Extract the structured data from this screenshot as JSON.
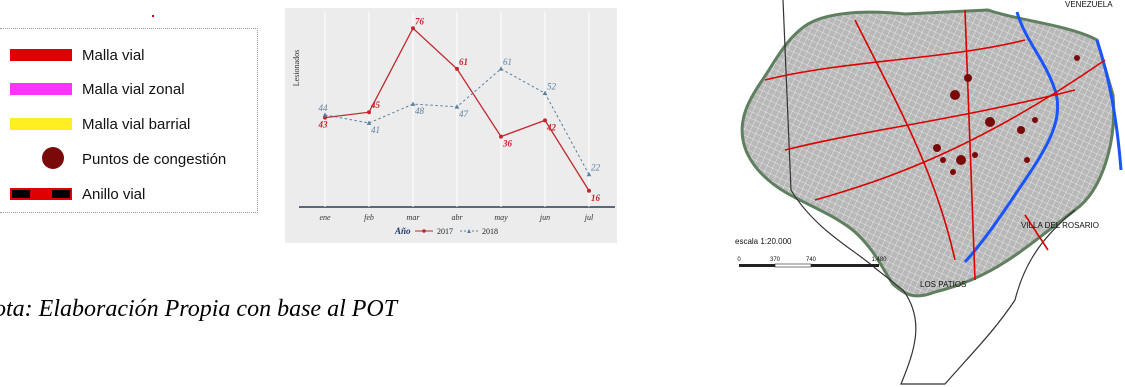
{
  "legend": {
    "items": [
      {
        "label": "Malla vial",
        "color": "#e00000"
      },
      {
        "label": "Malla vial zonal",
        "color": "#ff33ff"
      },
      {
        "label": "Malla vial barrial",
        "color": "#ffee22"
      },
      {
        "label": "Puntos de congestión",
        "color": "#7a0a0a"
      },
      {
        "label": "Anillo vial",
        "color": "#e00000"
      }
    ]
  },
  "chart_data": {
    "type": "line",
    "categories": [
      "ene",
      "feb",
      "mar",
      "abr",
      "may",
      "jun",
      "jul"
    ],
    "ylabel": "Lesionados",
    "legend_title": "Año",
    "series": [
      {
        "name": "2017",
        "values": [
          43,
          45,
          76,
          61,
          36,
          42,
          16
        ],
        "color": "#c0282e"
      },
      {
        "name": "2018",
        "values": [
          44,
          41,
          48,
          47,
          61,
          52,
          22
        ],
        "color": "#5a7fa0"
      }
    ],
    "ylim": [
      10,
      82
    ],
    "legend_position": "bottom"
  },
  "note": "ota: Elaboración Propia con base al POT",
  "map": {
    "labels": {
      "venezuela": "VENEZUELA",
      "villa": "VILLA DEL ROSARIO",
      "patios": "LOS PATIOS",
      "scale": "escala 1:20.000",
      "ticks": [
        "0",
        "370",
        "740",
        "1.480"
      ]
    }
  }
}
